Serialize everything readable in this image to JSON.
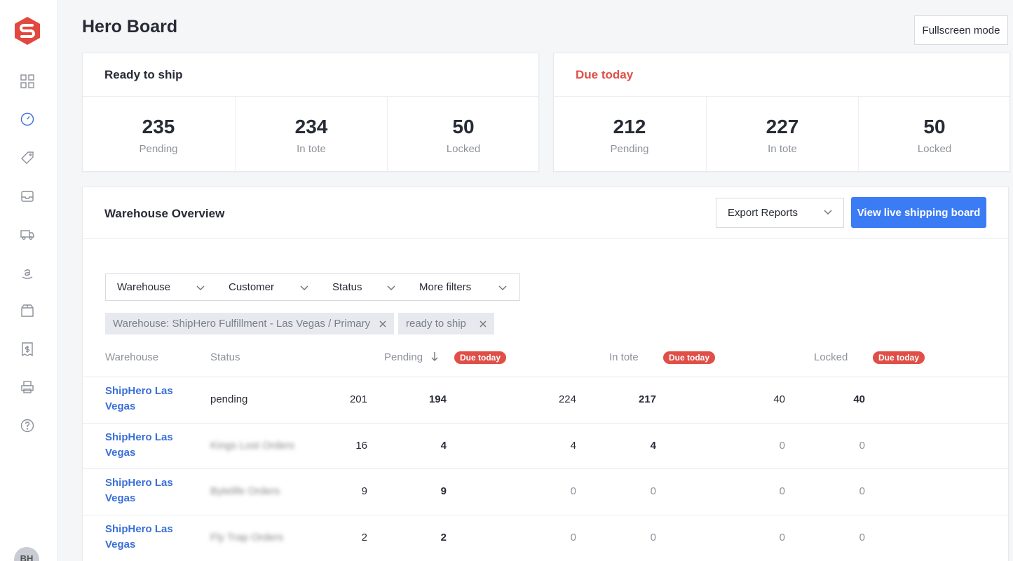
{
  "sidebar": {
    "avatar": "BH"
  },
  "header": {
    "title": "Hero Board",
    "fullscreen_button": "Fullscreen mode"
  },
  "summary_cards": [
    {
      "title": "Ready to ship",
      "stats": [
        {
          "value": 235,
          "label": "Pending"
        },
        {
          "value": 234,
          "label": "In tote"
        },
        {
          "value": 50,
          "label": "Locked"
        }
      ]
    },
    {
      "title": "Due today",
      "stats": [
        {
          "value": 212,
          "label": "Pending"
        },
        {
          "value": 227,
          "label": "In tote"
        },
        {
          "value": 50,
          "label": "Locked"
        }
      ]
    }
  ],
  "overview": {
    "title": "Warehouse Overview",
    "export_button": "Export Reports",
    "live_button": "View live shipping board",
    "filters": [
      "Warehouse",
      "Customer",
      "Status",
      "More filters"
    ],
    "active_filters": [
      "Warehouse: ShipHero Fulfillment - Las Vegas / Primary",
      "ready to ship"
    ],
    "columns": {
      "warehouse": "Warehouse",
      "status": "Status",
      "pending": "Pending",
      "in_tote": "In tote",
      "locked": "Locked",
      "due_badge": "Due today"
    },
    "rows": [
      {
        "warehouse": "ShipHero Las Vegas",
        "status": "pending",
        "pending": 201,
        "pending_due": 194,
        "in_tote": 224,
        "in_tote_due": 217,
        "locked": 40,
        "locked_due": 40
      },
      {
        "warehouse": "ShipHero Las Vegas",
        "status": "Kings Lost Orders",
        "pending": 16,
        "pending_due": 4,
        "in_tote": 4,
        "in_tote_due": 4,
        "locked": 0,
        "locked_due": 0
      },
      {
        "warehouse": "ShipHero Las Vegas",
        "status": "Bytelife Orders",
        "pending": 9,
        "pending_due": 9,
        "in_tote": 0,
        "in_tote_due": 0,
        "locked": 0,
        "locked_due": 0
      },
      {
        "warehouse": "ShipHero Las Vegas",
        "status": "Fly Trap Orders",
        "pending": 2,
        "pending_due": 2,
        "in_tote": 0,
        "in_tote_due": 0,
        "locked": 0,
        "locked_due": 0
      }
    ]
  }
}
